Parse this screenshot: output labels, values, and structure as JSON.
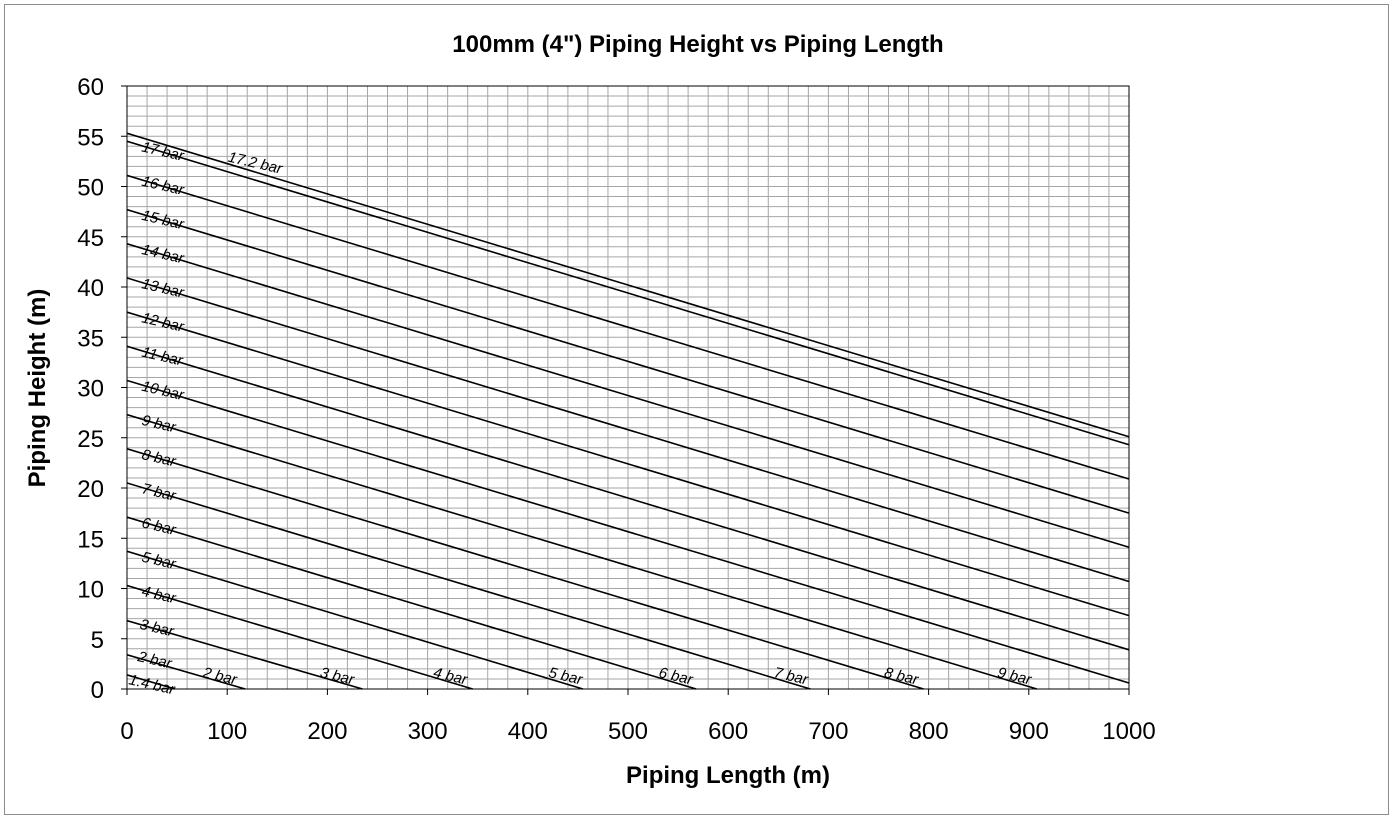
{
  "chart_data": {
    "type": "line",
    "title": "100mm (4\") Piping Height vs Piping Length",
    "xlabel": "Piping Length (m)",
    "ylabel": "Piping Height (m)",
    "xlim": [
      0,
      1000
    ],
    "ylim": [
      0,
      60
    ],
    "x_ticks": [
      0,
      100,
      200,
      300,
      400,
      500,
      600,
      700,
      800,
      900,
      1000
    ],
    "y_ticks": [
      0,
      5,
      10,
      15,
      20,
      25,
      30,
      35,
      40,
      45,
      50,
      55,
      60
    ],
    "grid": true,
    "series": [
      {
        "name": "1.4 bar",
        "x": [
          0,
          48
        ],
        "y": [
          1.4,
          0
        ]
      },
      {
        "name": "2 bar",
        "x": [
          0,
          118
        ],
        "y": [
          3.4,
          0
        ]
      },
      {
        "name": "3 bar",
        "x": [
          0,
          235
        ],
        "y": [
          6.8,
          0
        ]
      },
      {
        "name": "4 bar",
        "x": [
          0,
          345
        ],
        "y": [
          10.3,
          0
        ]
      },
      {
        "name": "5 bar",
        "x": [
          0,
          455
        ],
        "y": [
          13.7,
          0
        ]
      },
      {
        "name": "6 bar",
        "x": [
          0,
          568
        ],
        "y": [
          17.1,
          0
        ]
      },
      {
        "name": "7 bar",
        "x": [
          0,
          682
        ],
        "y": [
          20.5,
          0
        ]
      },
      {
        "name": "8 bar",
        "x": [
          0,
          795
        ],
        "y": [
          23.9,
          0
        ]
      },
      {
        "name": "9 bar",
        "x": [
          0,
          908
        ],
        "y": [
          27.3,
          0
        ]
      },
      {
        "name": "10 bar",
        "x": [
          0,
          1000
        ],
        "y": [
          30.7,
          0.6
        ]
      },
      {
        "name": "11 bar",
        "x": [
          0,
          1000
        ],
        "y": [
          34.1,
          3.9
        ]
      },
      {
        "name": "12 bar",
        "x": [
          0,
          1000
        ],
        "y": [
          37.5,
          7.3
        ]
      },
      {
        "name": "13 bar",
        "x": [
          0,
          1000
        ],
        "y": [
          40.9,
          10.7
        ]
      },
      {
        "name": "14 bar",
        "x": [
          0,
          1000
        ],
        "y": [
          44.3,
          14.1
        ]
      },
      {
        "name": "15 bar",
        "x": [
          0,
          1000
        ],
        "y": [
          47.7,
          17.5
        ]
      },
      {
        "name": "16 bar",
        "x": [
          0,
          1000
        ],
        "y": [
          51.1,
          20.9
        ]
      },
      {
        "name": "17 bar",
        "x": [
          0,
          1000
        ],
        "y": [
          54.5,
          24.3
        ]
      },
      {
        "name": "17.2 bar",
        "x": [
          0,
          1000
        ],
        "y": [
          55.3,
          25.1
        ]
      }
    ],
    "line_labels": [
      {
        "text": "1.4 bar",
        "x": 1,
        "y": 0.5
      },
      {
        "text": "2 bar",
        "x": 10,
        "y": 2.8
      },
      {
        "text": "2 bar",
        "x": 75,
        "y": 1.2
      },
      {
        "text": "3 bar",
        "x": 12,
        "y": 6.0
      },
      {
        "text": "3 bar",
        "x": 192,
        "y": 1.2
      },
      {
        "text": "4 bar",
        "x": 14,
        "y": 9.3
      },
      {
        "text": "4 bar",
        "x": 305,
        "y": 1.2
      },
      {
        "text": "5 bar",
        "x": 14,
        "y": 12.7
      },
      {
        "text": "5 bar",
        "x": 420,
        "y": 1.2
      },
      {
        "text": "6 bar",
        "x": 14,
        "y": 16.1
      },
      {
        "text": "6 bar",
        "x": 530,
        "y": 1.2
      },
      {
        "text": "7 bar",
        "x": 14,
        "y": 19.5
      },
      {
        "text": "7 bar",
        "x": 645,
        "y": 1.2
      },
      {
        "text": "8 bar",
        "x": 14,
        "y": 22.9
      },
      {
        "text": "8 bar",
        "x": 755,
        "y": 1.2
      },
      {
        "text": "9 bar",
        "x": 14,
        "y": 26.3
      },
      {
        "text": "9 bar",
        "x": 868,
        "y": 1.2
      },
      {
        "text": "10 bar",
        "x": 14,
        "y": 29.7
      },
      {
        "text": "11 bar",
        "x": 14,
        "y": 33.1
      },
      {
        "text": "12 bar",
        "x": 14,
        "y": 36.5
      },
      {
        "text": "13 bar",
        "x": 14,
        "y": 39.9
      },
      {
        "text": "14 bar",
        "x": 14,
        "y": 43.3
      },
      {
        "text": "15 bar",
        "x": 14,
        "y": 46.7
      },
      {
        "text": "16 bar",
        "x": 14,
        "y": 50.1
      },
      {
        "text": "17 bar",
        "x": 14,
        "y": 53.5
      },
      {
        "text": "17.2 bar",
        "x": 100,
        "y": 52.5
      }
    ],
    "colors": {
      "line": "#000000",
      "grid": "#a6a6a6",
      "frame": "#000000"
    }
  }
}
